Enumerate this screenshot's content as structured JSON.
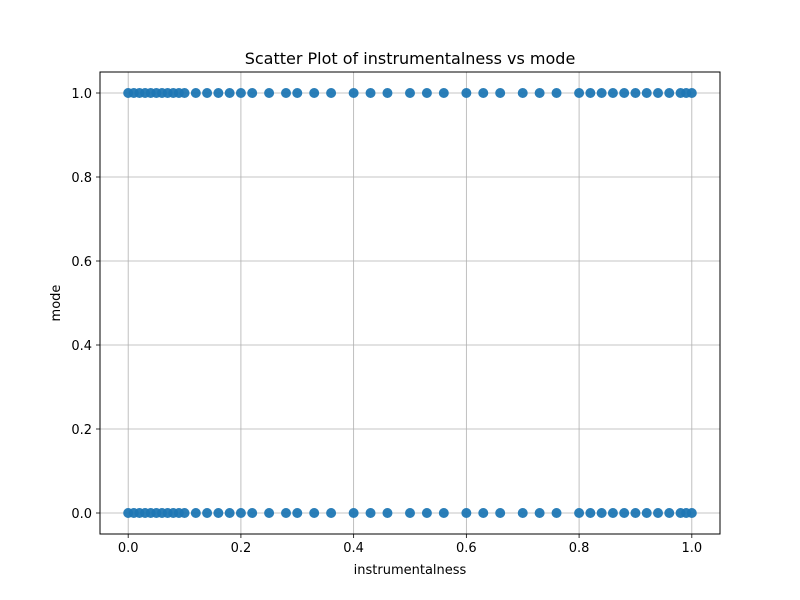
{
  "chart_data": {
    "type": "scatter",
    "title": "Scatter Plot of instrumentalness vs mode",
    "xlabel": "instrumentalness",
    "ylabel": "mode",
    "xlim": [
      -0.05,
      1.05
    ],
    "ylim": [
      -0.05,
      1.05
    ],
    "xticks": [
      0.0,
      0.2,
      0.4,
      0.6,
      0.8,
      1.0
    ],
    "xtick_labels": [
      "0.0",
      "0.2",
      "0.4",
      "0.6",
      "0.8",
      "1.0"
    ],
    "yticks": [
      0.0,
      0.2,
      0.4,
      0.6,
      0.8,
      1.0
    ],
    "ytick_labels": [
      "0.0",
      "0.2",
      "0.4",
      "0.6",
      "0.8",
      "1.0"
    ],
    "grid": true,
    "marker_color": "#1f77b4",
    "series": [
      {
        "points": [
          [
            0.0,
            0
          ],
          [
            0.01,
            0
          ],
          [
            0.02,
            0
          ],
          [
            0.03,
            0
          ],
          [
            0.04,
            0
          ],
          [
            0.05,
            0
          ],
          [
            0.06,
            0
          ],
          [
            0.07,
            0
          ],
          [
            0.08,
            0
          ],
          [
            0.09,
            0
          ],
          [
            0.1,
            0
          ],
          [
            0.12,
            0
          ],
          [
            0.14,
            0
          ],
          [
            0.16,
            0
          ],
          [
            0.18,
            0
          ],
          [
            0.2,
            0
          ],
          [
            0.22,
            0
          ],
          [
            0.25,
            0
          ],
          [
            0.28,
            0
          ],
          [
            0.3,
            0
          ],
          [
            0.33,
            0
          ],
          [
            0.36,
            0
          ],
          [
            0.4,
            0
          ],
          [
            0.43,
            0
          ],
          [
            0.46,
            0
          ],
          [
            0.5,
            0
          ],
          [
            0.53,
            0
          ],
          [
            0.56,
            0
          ],
          [
            0.6,
            0
          ],
          [
            0.63,
            0
          ],
          [
            0.66,
            0
          ],
          [
            0.7,
            0
          ],
          [
            0.73,
            0
          ],
          [
            0.76,
            0
          ],
          [
            0.8,
            0
          ],
          [
            0.82,
            0
          ],
          [
            0.84,
            0
          ],
          [
            0.86,
            0
          ],
          [
            0.88,
            0
          ],
          [
            0.9,
            0
          ],
          [
            0.92,
            0
          ],
          [
            0.94,
            0
          ],
          [
            0.96,
            0
          ],
          [
            0.98,
            0
          ],
          [
            0.99,
            0
          ],
          [
            1.0,
            0
          ],
          [
            0.0,
            1
          ],
          [
            0.01,
            1
          ],
          [
            0.02,
            1
          ],
          [
            0.03,
            1
          ],
          [
            0.04,
            1
          ],
          [
            0.05,
            1
          ],
          [
            0.06,
            1
          ],
          [
            0.07,
            1
          ],
          [
            0.08,
            1
          ],
          [
            0.09,
            1
          ],
          [
            0.1,
            1
          ],
          [
            0.12,
            1
          ],
          [
            0.14,
            1
          ],
          [
            0.16,
            1
          ],
          [
            0.18,
            1
          ],
          [
            0.2,
            1
          ],
          [
            0.22,
            1
          ],
          [
            0.25,
            1
          ],
          [
            0.28,
            1
          ],
          [
            0.3,
            1
          ],
          [
            0.33,
            1
          ],
          [
            0.36,
            1
          ],
          [
            0.4,
            1
          ],
          [
            0.43,
            1
          ],
          [
            0.46,
            1
          ],
          [
            0.5,
            1
          ],
          [
            0.53,
            1
          ],
          [
            0.56,
            1
          ],
          [
            0.6,
            1
          ],
          [
            0.63,
            1
          ],
          [
            0.66,
            1
          ],
          [
            0.7,
            1
          ],
          [
            0.73,
            1
          ],
          [
            0.76,
            1
          ],
          [
            0.8,
            1
          ],
          [
            0.82,
            1
          ],
          [
            0.84,
            1
          ],
          [
            0.86,
            1
          ],
          [
            0.88,
            1
          ],
          [
            0.9,
            1
          ],
          [
            0.92,
            1
          ],
          [
            0.94,
            1
          ],
          [
            0.96,
            1
          ],
          [
            0.98,
            1
          ],
          [
            0.99,
            1
          ],
          [
            1.0,
            1
          ]
        ]
      }
    ]
  }
}
